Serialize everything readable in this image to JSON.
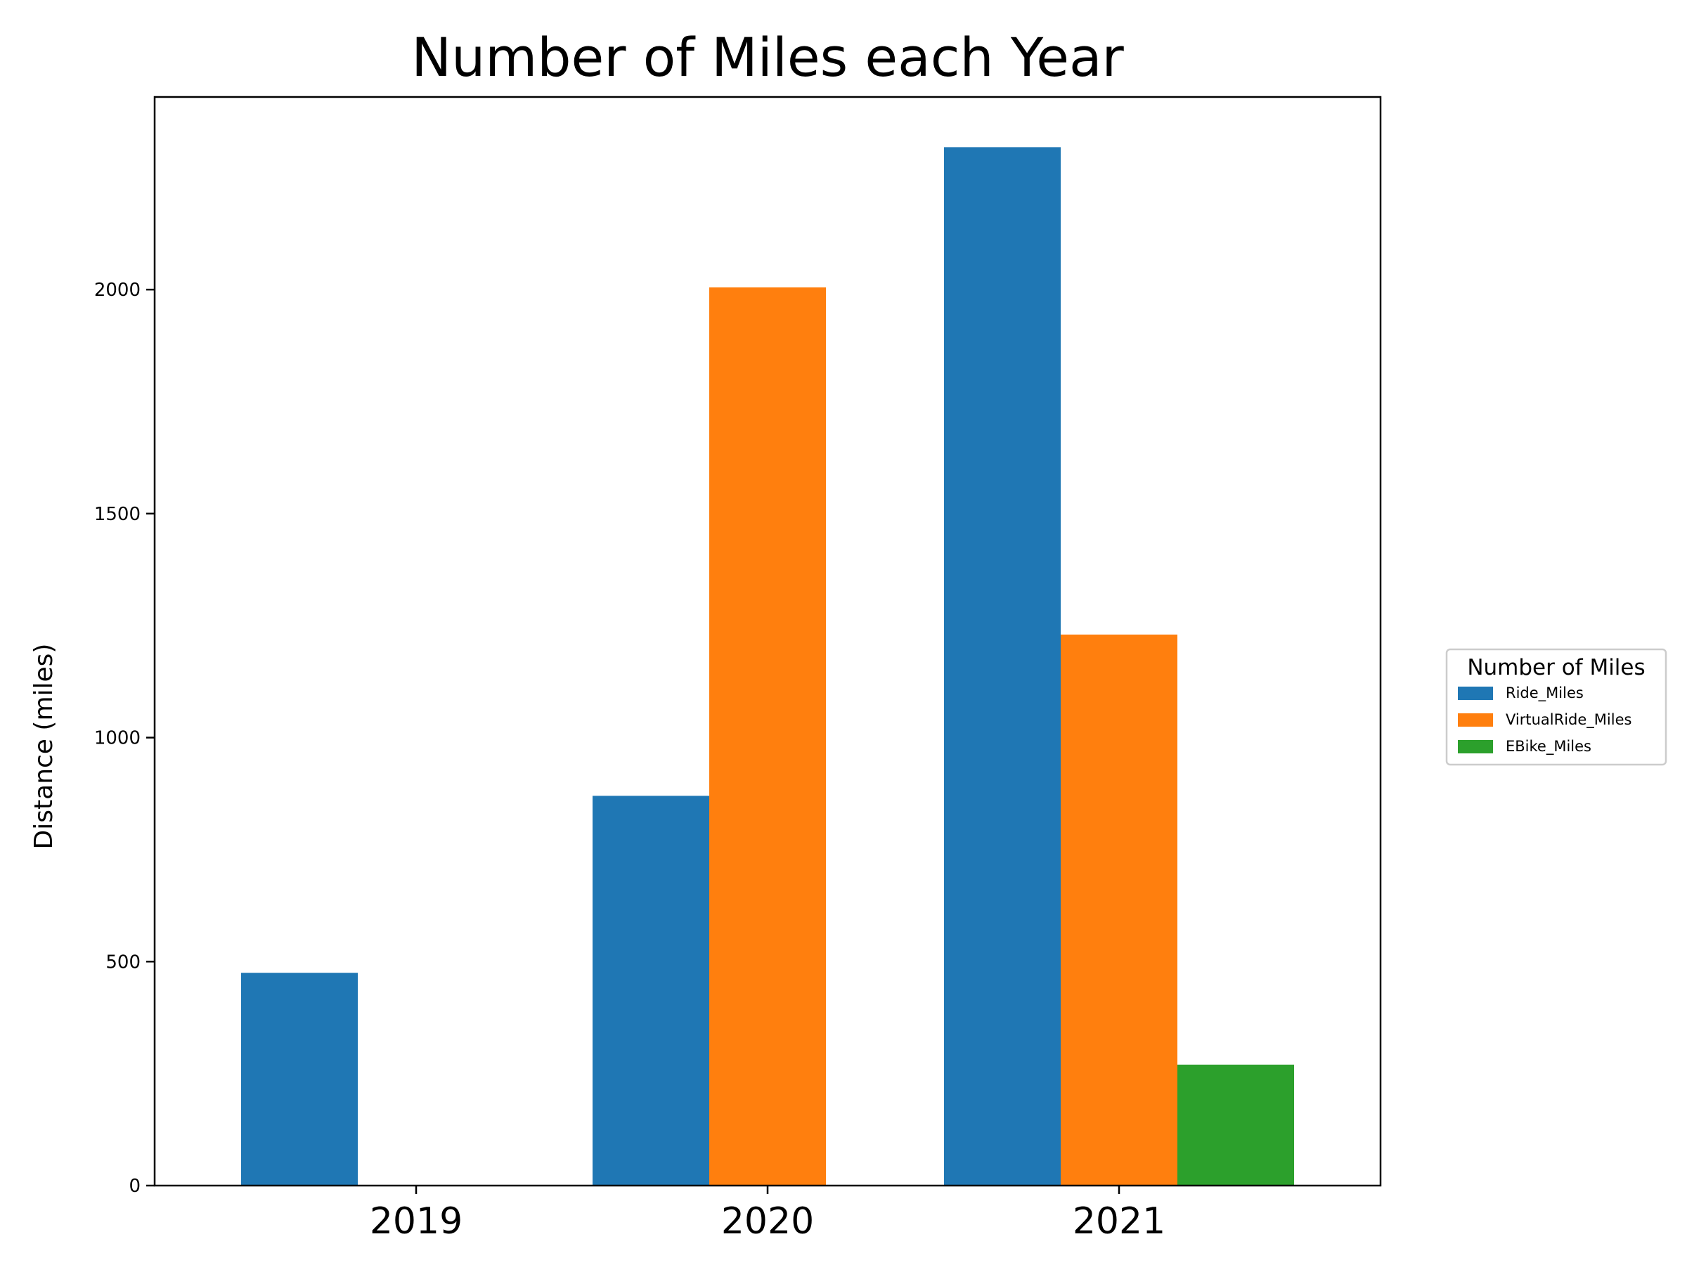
{
  "chart_data": {
    "type": "bar",
    "title": "Number of Miles each Year",
    "xlabel": "",
    "ylabel": "Distance (miles)",
    "categories": [
      "2019",
      "2020",
      "2021"
    ],
    "yticks": [
      0,
      500,
      1000,
      1500,
      2000
    ],
    "ylim": [
      0,
      2430
    ],
    "grid": false,
    "legend": {
      "title": "Number of Miles",
      "placement": "right-outside"
    },
    "series": [
      {
        "name": "Ride_Miles",
        "color": "#1f77b4",
        "values": [
          475,
          870,
          2318
        ]
      },
      {
        "name": "VirtualRide_Miles",
        "color": "#ff7f0e",
        "values": [
          0,
          2005,
          1230
        ]
      },
      {
        "name": "EBike_Miles",
        "color": "#2ca02c",
        "values": [
          0,
          0,
          270
        ]
      }
    ]
  }
}
